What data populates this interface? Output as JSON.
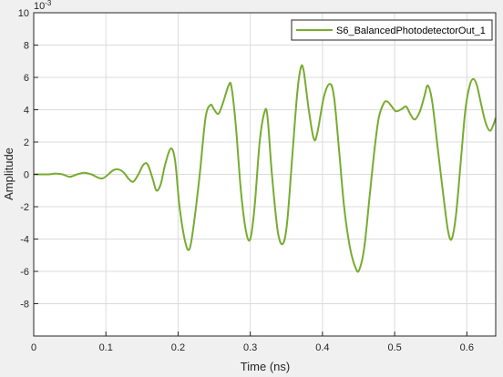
{
  "chart_data": {
    "type": "line",
    "xlabel": "Time (ns)",
    "ylabel": "Amplitude",
    "y_exponent_label": "10",
    "y_exponent_power": "-3",
    "xlim": [
      0,
      0.64
    ],
    "ylim": [
      -10,
      10
    ],
    "xticks": [
      0,
      0.1,
      0.2,
      0.3,
      0.4,
      0.5,
      0.6
    ],
    "xtick_labels": [
      "0",
      "0.1",
      "0.2",
      "0.3",
      "0.4",
      "0.5",
      "0.6"
    ],
    "yticks": [
      -8,
      -6,
      -4,
      -2,
      0,
      2,
      4,
      6,
      8,
      10
    ],
    "ytick_labels": [
      "-8",
      "-6",
      "-4",
      "-2",
      "0",
      "2",
      "4",
      "6",
      "8",
      "10"
    ],
    "grid": true,
    "legend_position": "top-right",
    "series": [
      {
        "name": "S6_BalancedPhotodetectorOut_1",
        "color": "#77ac30",
        "points": [
          [
            0.0,
            0.0
          ],
          [
            0.02,
            0.0
          ],
          [
            0.03,
            0.05
          ],
          [
            0.04,
            0.0
          ],
          [
            0.05,
            -0.15
          ],
          [
            0.06,
            0.0
          ],
          [
            0.07,
            0.1
          ],
          [
            0.08,
            0.0
          ],
          [
            0.095,
            -0.25
          ],
          [
            0.11,
            0.25
          ],
          [
            0.118,
            0.3
          ],
          [
            0.125,
            0.1
          ],
          [
            0.132,
            -0.3
          ],
          [
            0.138,
            -0.45
          ],
          [
            0.145,
            0.0
          ],
          [
            0.152,
            0.6
          ],
          [
            0.158,
            0.6
          ],
          [
            0.165,
            -0.3
          ],
          [
            0.17,
            -1.0
          ],
          [
            0.176,
            -0.6
          ],
          [
            0.182,
            0.6
          ],
          [
            0.19,
            1.6
          ],
          [
            0.196,
            0.8
          ],
          [
            0.202,
            -2.0
          ],
          [
            0.21,
            -4.2
          ],
          [
            0.216,
            -4.6
          ],
          [
            0.222,
            -3.0
          ],
          [
            0.23,
            0.0
          ],
          [
            0.238,
            3.5
          ],
          [
            0.245,
            4.3
          ],
          [
            0.25,
            4.0
          ],
          [
            0.256,
            3.75
          ],
          [
            0.262,
            4.4
          ],
          [
            0.27,
            5.5
          ],
          [
            0.274,
            5.4
          ],
          [
            0.28,
            3.0
          ],
          [
            0.287,
            -1.0
          ],
          [
            0.294,
            -3.5
          ],
          [
            0.3,
            -4.0
          ],
          [
            0.306,
            -2.0
          ],
          [
            0.313,
            2.0
          ],
          [
            0.32,
            3.9
          ],
          [
            0.324,
            3.5
          ],
          [
            0.33,
            0.0
          ],
          [
            0.338,
            -3.5
          ],
          [
            0.345,
            -4.3
          ],
          [
            0.351,
            -3.0
          ],
          [
            0.358,
            1.0
          ],
          [
            0.365,
            5.0
          ],
          [
            0.37,
            6.6
          ],
          [
            0.374,
            6.4
          ],
          [
            0.381,
            4.0
          ],
          [
            0.388,
            2.2
          ],
          [
            0.393,
            2.6
          ],
          [
            0.402,
            4.8
          ],
          [
            0.41,
            5.6
          ],
          [
            0.416,
            4.8
          ],
          [
            0.423,
            1.5
          ],
          [
            0.43,
            -2.0
          ],
          [
            0.438,
            -4.5
          ],
          [
            0.446,
            -5.8
          ],
          [
            0.451,
            -5.9
          ],
          [
            0.458,
            -4.5
          ],
          [
            0.465,
            -1.5
          ],
          [
            0.472,
            1.5
          ],
          [
            0.478,
            3.5
          ],
          [
            0.485,
            4.4
          ],
          [
            0.49,
            4.5
          ],
          [
            0.496,
            4.2
          ],
          [
            0.502,
            3.9
          ],
          [
            0.51,
            4.05
          ],
          [
            0.516,
            4.2
          ],
          [
            0.522,
            3.7
          ],
          [
            0.528,
            3.4
          ],
          [
            0.535,
            3.9
          ],
          [
            0.541,
            4.8
          ],
          [
            0.546,
            5.5
          ],
          [
            0.552,
            4.5
          ],
          [
            0.56,
            1.5
          ],
          [
            0.568,
            -1.5
          ],
          [
            0.574,
            -3.5
          ],
          [
            0.579,
            -4.0
          ],
          [
            0.585,
            -2.5
          ],
          [
            0.592,
            1.0
          ],
          [
            0.598,
            4.0
          ],
          [
            0.604,
            5.5
          ],
          [
            0.609,
            5.9
          ],
          [
            0.614,
            5.5
          ],
          [
            0.62,
            4.3
          ],
          [
            0.626,
            3.2
          ],
          [
            0.632,
            2.7
          ],
          [
            0.637,
            3.1
          ],
          [
            0.64,
            3.5
          ]
        ]
      }
    ]
  }
}
